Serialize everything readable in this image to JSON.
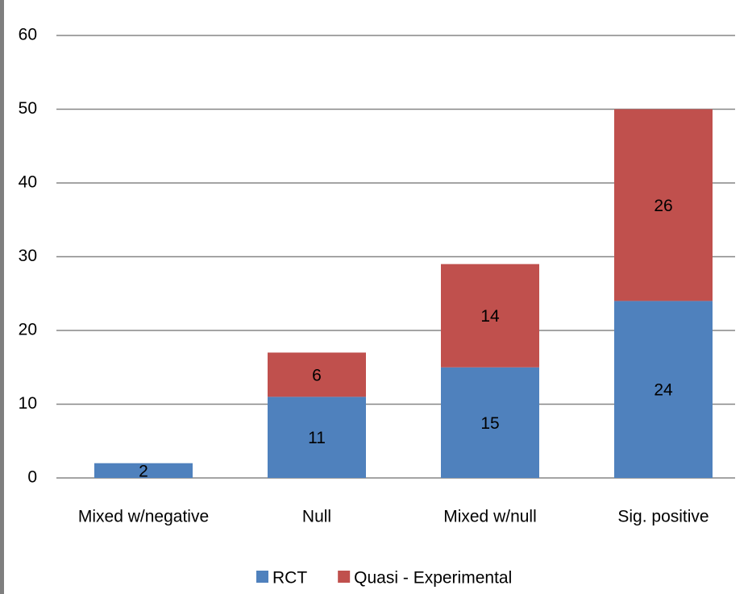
{
  "chart_data": {
    "type": "stacked_bar",
    "categories": [
      "Mixed w/negative",
      "Null",
      "Mixed w/null",
      "Sig. positive"
    ],
    "series": [
      {
        "name": "RCT",
        "color": "#4f81bd",
        "values": [
          2,
          11,
          15,
          24
        ]
      },
      {
        "name": "Quasi - Experimental",
        "color": "#c0504d",
        "values": [
          null,
          6,
          14,
          26
        ]
      }
    ],
    "ylim": [
      0,
      60
    ],
    "yticks": [
      0,
      10,
      20,
      30,
      40,
      50,
      60
    ],
    "grid": true,
    "legend": "bottom"
  }
}
